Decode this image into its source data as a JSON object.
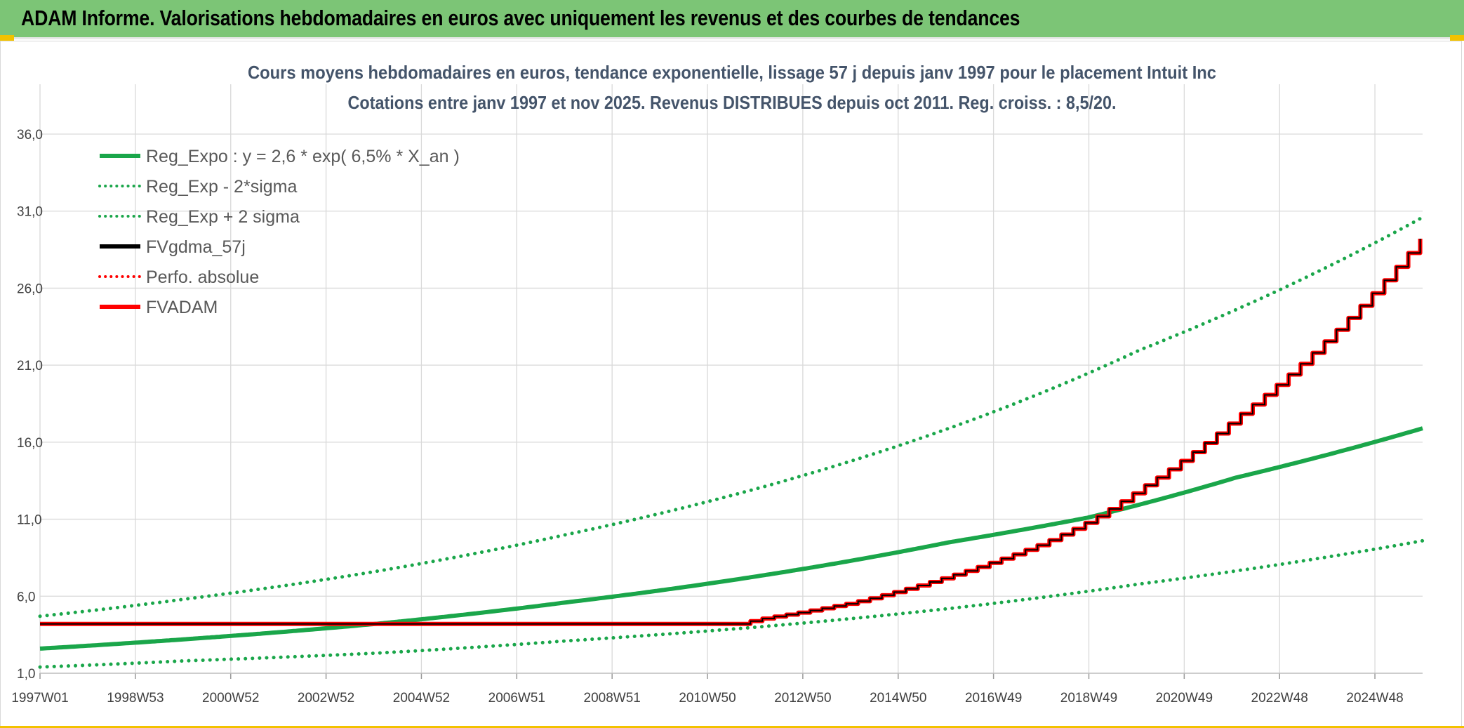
{
  "header": {
    "title": "ADAM Informe. Valorisations hebdomadaires en euros avec uniquement les revenus et des courbes de tendances"
  },
  "colors": {
    "header_bg": "#7cc576",
    "green": "#1aa64a",
    "black": "#000000",
    "red": "#ff0000",
    "grid": "#d9d9d9"
  },
  "chart_data": {
    "type": "line",
    "title_lines": [
      "Cours moyens hebdomadaires en euros, tendance exponentielle, lissage 57 j depuis janv 1997 pour le placement Intuit Inc",
      "Cotations entre janv 1997 et nov 2025. Revenus DISTRIBUES depuis oct 2011. Reg. croiss. : 8,5/20."
    ],
    "x_categories": [
      "1997W01",
      "1998W53",
      "2000W52",
      "2002W52",
      "2004W52",
      "2006W51",
      "2008W51",
      "2010W50",
      "2012W50",
      "2014W50",
      "2016W49",
      "2018W49",
      "2020W49",
      "2022W48",
      "2024W48"
    ],
    "x_range_years": [
      1997.0,
      2025.9
    ],
    "y_ticks": [
      "1,0",
      "6,0",
      "11,0",
      "16,0",
      "21,0",
      "26,0",
      "31,0",
      "36,0"
    ],
    "ylim": [
      1,
      36
    ],
    "legend": [
      {
        "label": "Reg_Expo : y = 2,6 * exp( 6,5% *  X_an )",
        "color": "#1aa64a",
        "style": "solid"
      },
      {
        "label": "Reg_Exp - 2*sigma",
        "color": "#1aa64a",
        "style": "dotted"
      },
      {
        "label": "Reg_Exp + 2 sigma",
        "color": "#1aa64a",
        "style": "dotted"
      },
      {
        "label": "FVgdma_57j",
        "color": "#000000",
        "style": "solid"
      },
      {
        "label": "Perfo. absolue",
        "color": "#ff0000",
        "style": "dotted"
      },
      {
        "label": "FVADAM",
        "color": "#ff0000",
        "style": "solid"
      }
    ],
    "series": [
      {
        "name": "Reg_Expo",
        "years": [
          1997.0,
          2000.0,
          2004.0,
          2008.0,
          2012.0,
          2016.0,
          2018.9,
          2022.0,
          2025.9
        ],
        "values": [
          2.6,
          3.2,
          4.2,
          5.6,
          7.3,
          9.5,
          11.1,
          13.7,
          16.9
        ]
      },
      {
        "name": "Reg_Exp - 2*sigma",
        "years": [
          1997.0,
          2000.0,
          2004.0,
          2008.0,
          2012.0,
          2016.0,
          2020.0,
          2025.9
        ],
        "values": [
          1.4,
          1.8,
          2.3,
          3.1,
          4.0,
          5.2,
          6.8,
          9.6
        ]
      },
      {
        "name": "Reg_Exp + 2 sigma",
        "years": [
          1997.0,
          2000.0,
          2004.0,
          2008.0,
          2012.0,
          2016.0,
          2020.0,
          2025.9
        ],
        "values": [
          4.7,
          5.8,
          7.6,
          10.0,
          13.0,
          16.9,
          22.0,
          30.6
        ]
      },
      {
        "name": "FVgdma_57j",
        "years": [
          1997.0,
          2011.6,
          2012.0,
          2014.0,
          2016.0,
          2018.0,
          2019.0,
          2020.0,
          2022.0,
          2024.0,
          2025.9
        ],
        "values": [
          4.2,
          4.2,
          4.5,
          5.6,
          7.3,
          9.5,
          11.0,
          13.0,
          17.6,
          23.0,
          29.4
        ]
      },
      {
        "name": "FVADAM",
        "years": [
          1997.0,
          2011.6,
          2012.0,
          2014.0,
          2016.0,
          2018.0,
          2019.0,
          2020.0,
          2022.0,
          2024.0,
          2025.9
        ],
        "values": [
          4.2,
          4.2,
          4.5,
          5.6,
          7.3,
          9.5,
          11.0,
          13.0,
          17.6,
          23.0,
          29.4
        ]
      }
    ]
  }
}
